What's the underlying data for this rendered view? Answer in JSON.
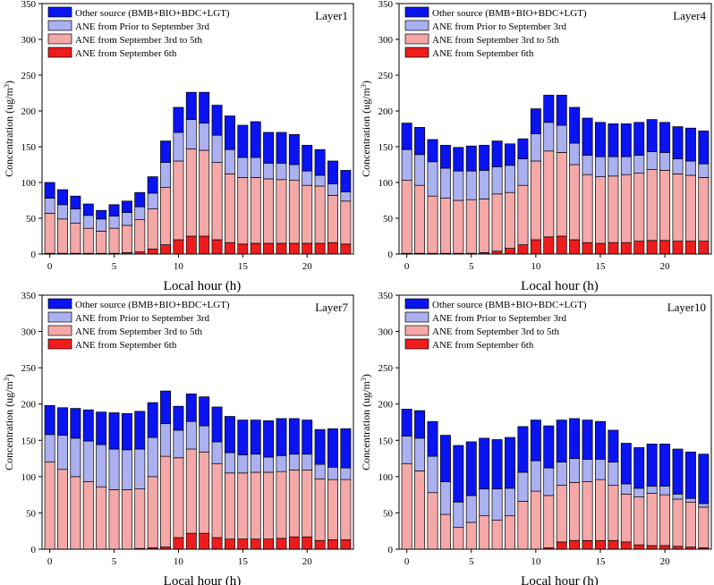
{
  "figure": {
    "xlabel": "Local hour (h)",
    "ylabel": "Concentration (ug/m",
    "ylabel_superscript": "3",
    "ylabel_suffix": ")",
    "legend_labels": [
      "Other source (BMB+BIO+BDC+LGT)",
      "ANE from Prior to September 3rd",
      "ANE from September 3rd to 5th",
      "ANE from September 6th"
    ],
    "colors": [
      "#0a14f0",
      "#aab0f0",
      "#f5a8a8",
      "#ee1c1c"
    ]
  },
  "chart_data": [
    {
      "type": "bar",
      "stacked": true,
      "title": "Layer1",
      "xlabel": "Local hour (h)",
      "ylabel": "Concentration (ug/m3)",
      "ylim": [
        0,
        350
      ],
      "x_ticks": [
        0,
        5,
        10,
        15,
        20
      ],
      "y_ticks": [
        0,
        50,
        100,
        150,
        200,
        250,
        300,
        350
      ],
      "legend_position": "top-left",
      "x": [
        0,
        1,
        2,
        3,
        4,
        5,
        6,
        7,
        8,
        9,
        10,
        11,
        12,
        13,
        14,
        15,
        16,
        17,
        18,
        19,
        20,
        21,
        22,
        23
      ],
      "series": [
        {
          "name": "ANE from September 6th",
          "values": [
            1,
            1,
            1,
            1,
            1,
            1,
            2,
            3,
            7,
            13,
            20,
            25,
            25,
            20,
            16,
            14,
            15,
            15,
            15,
            15,
            15,
            15,
            16,
            14
          ]
        },
        {
          "name": "ANE from September 3rd to 5th",
          "values": [
            56,
            48,
            42,
            35,
            31,
            35,
            38,
            45,
            56,
            80,
            110,
            122,
            120,
            108,
            96,
            93,
            92,
            90,
            89,
            88,
            81,
            80,
            66,
            60
          ]
        },
        {
          "name": "ANE from Prior to September 3rd",
          "values": [
            21,
            20,
            20,
            18,
            17,
            17,
            18,
            18,
            22,
            35,
            40,
            41,
            38,
            38,
            34,
            28,
            28,
            22,
            23,
            22,
            20,
            15,
            16,
            13
          ]
        },
        {
          "name": "Other source (BMB+BIO+BDC+LGT)",
          "values": [
            22,
            21,
            18,
            16,
            12,
            16,
            16,
            20,
            23,
            30,
            35,
            38,
            43,
            42,
            47,
            45,
            50,
            43,
            43,
            42,
            36,
            36,
            32,
            30
          ]
        }
      ]
    },
    {
      "type": "bar",
      "stacked": true,
      "title": "Layer4",
      "xlabel": "Local hour (h)",
      "ylabel": "Concentration (ug/m3)",
      "ylim": [
        0,
        350
      ],
      "x_ticks": [
        0,
        5,
        10,
        15,
        20
      ],
      "y_ticks": [
        0,
        50,
        100,
        150,
        200,
        250,
        300,
        350
      ],
      "legend_position": "top-left",
      "x": [
        0,
        1,
        2,
        3,
        4,
        5,
        6,
        7,
        8,
        9,
        10,
        11,
        12,
        13,
        14,
        15,
        16,
        17,
        18,
        19,
        20,
        21,
        22,
        23
      ],
      "series": [
        {
          "name": "ANE from September 6th",
          "values": [
            1,
            1,
            1,
            1,
            1,
            1,
            2,
            4,
            8,
            13,
            20,
            24,
            25,
            20,
            16,
            15,
            16,
            16,
            18,
            19,
            19,
            18,
            18,
            18
          ]
        },
        {
          "name": "ANE from September 3rd to 5th",
          "values": [
            102,
            95,
            80,
            77,
            74,
            75,
            75,
            80,
            78,
            83,
            110,
            120,
            117,
            105,
            95,
            93,
            93,
            95,
            95,
            99,
            98,
            94,
            92,
            89
          ]
        },
        {
          "name": "ANE from Prior to September 3rd",
          "values": [
            43,
            43,
            48,
            42,
            41,
            40,
            40,
            38,
            38,
            37,
            38,
            40,
            38,
            30,
            27,
            28,
            27,
            25,
            25,
            25,
            25,
            21,
            20,
            19
          ]
        },
        {
          "name": "Other source (BMB+BIO+BDC+LGT)",
          "values": [
            37,
            38,
            31,
            32,
            33,
            35,
            35,
            36,
            30,
            28,
            35,
            38,
            42,
            50,
            52,
            48,
            46,
            46,
            46,
            45,
            42,
            45,
            46,
            46
          ]
        }
      ]
    },
    {
      "type": "bar",
      "stacked": true,
      "title": "Layer7",
      "xlabel": "Local hour (h)",
      "ylabel": "Concentration (ug/m3)",
      "ylim": [
        0,
        350
      ],
      "x_ticks": [
        0,
        5,
        10,
        15,
        20
      ],
      "y_ticks": [
        0,
        50,
        100,
        150,
        200,
        250,
        300,
        350
      ],
      "legend_position": "top-left",
      "x": [
        0,
        1,
        2,
        3,
        4,
        5,
        6,
        7,
        8,
        9,
        10,
        11,
        12,
        13,
        14,
        15,
        16,
        17,
        18,
        19,
        20,
        21,
        22,
        23
      ],
      "series": [
        {
          "name": "ANE from September 6th",
          "values": [
            0,
            0,
            0,
            0,
            0,
            0,
            0,
            1,
            2,
            3,
            16,
            22,
            22,
            16,
            14,
            14,
            14,
            14,
            15,
            17,
            17,
            12,
            13,
            13
          ]
        },
        {
          "name": "ANE from September 3rd to 5th",
          "values": [
            120,
            110,
            100,
            93,
            86,
            82,
            82,
            82,
            98,
            125,
            110,
            116,
            112,
            102,
            91,
            91,
            92,
            92,
            92,
            92,
            92,
            85,
            83,
            83
          ]
        },
        {
          "name": "ANE from Prior to September 3rd",
          "values": [
            38,
            47,
            53,
            56,
            58,
            56,
            55,
            55,
            54,
            45,
            38,
            38,
            36,
            30,
            28,
            25,
            25,
            21,
            22,
            22,
            22,
            20,
            17,
            16
          ]
        },
        {
          "name": "Other source (BMB+BIO+BDC+LGT)",
          "values": [
            40,
            38,
            41,
            43,
            45,
            50,
            50,
            52,
            48,
            45,
            33,
            38,
            40,
            48,
            50,
            48,
            47,
            50,
            51,
            49,
            47,
            48,
            53,
            54
          ]
        }
      ]
    },
    {
      "type": "bar",
      "stacked": true,
      "title": "Layer10",
      "xlabel": "Local hour (h)",
      "ylabel": "Concentration (ug/m3)",
      "ylim": [
        0,
        350
      ],
      "x_ticks": [
        0,
        5,
        10,
        15,
        20
      ],
      "y_ticks": [
        0,
        50,
        100,
        150,
        200,
        250,
        300,
        350
      ],
      "legend_position": "top-left",
      "x": [
        0,
        1,
        2,
        3,
        4,
        5,
        6,
        7,
        8,
        9,
        10,
        11,
        12,
        13,
        14,
        15,
        16,
        17,
        18,
        19,
        20,
        21,
        22,
        23
      ],
      "series": [
        {
          "name": "ANE from September 6th",
          "values": [
            0,
            0,
            0,
            0,
            0,
            0,
            0,
            0,
            0,
            0,
            0,
            2,
            10,
            12,
            12,
            12,
            12,
            10,
            6,
            5,
            5,
            4,
            3,
            2
          ]
        },
        {
          "name": "ANE from September 3rd to 5th",
          "values": [
            118,
            108,
            78,
            48,
            30,
            37,
            46,
            40,
            46,
            66,
            80,
            72,
            78,
            80,
            81,
            84,
            76,
            66,
            66,
            72,
            70,
            65,
            62,
            56
          ]
        },
        {
          "name": "ANE from Prior to September 3rd",
          "values": [
            38,
            45,
            50,
            45,
            35,
            37,
            37,
            43,
            38,
            40,
            42,
            38,
            32,
            33,
            31,
            28,
            32,
            14,
            12,
            10,
            12,
            7,
            5,
            5
          ]
        },
        {
          "name": "Other source (BMB+BIO+BDC+LGT)",
          "values": [
            37,
            38,
            48,
            64,
            78,
            74,
            70,
            68,
            70,
            63,
            56,
            58,
            58,
            55,
            54,
            52,
            44,
            56,
            56,
            58,
            58,
            62,
            64,
            68
          ]
        }
      ]
    }
  ]
}
